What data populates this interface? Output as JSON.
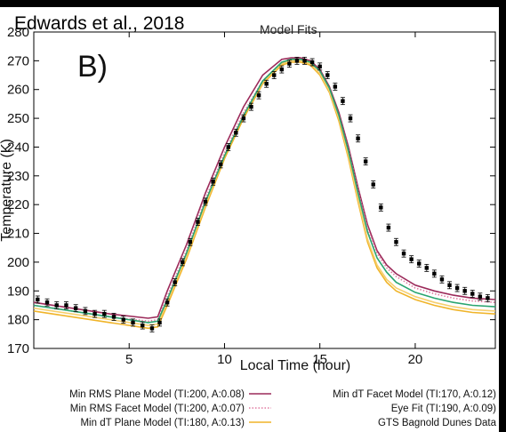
{
  "citation": "Edwards et al., 2018",
  "panel_label": "B)",
  "chart_data": {
    "type": "line",
    "title": "Model Fits",
    "xlabel": "Local Time (hour)",
    "ylabel": "Temperature (K)",
    "xlim": [
      0,
      24.2
    ],
    "ylim": [
      170,
      280
    ],
    "xticks": [
      5,
      10,
      15,
      20
    ],
    "yticks": [
      170,
      180,
      190,
      200,
      210,
      220,
      230,
      240,
      250,
      260,
      270,
      280
    ],
    "grid": false,
    "legend_position": "bottom",
    "series": [
      {
        "name": "Min RMS Plane Model (TI:200, A:0.08)",
        "color": "#9c2a5a",
        "style": "solid",
        "x": [
          0,
          2,
          4,
          6,
          6.5,
          7,
          7.5,
          8,
          8.5,
          9,
          10,
          11,
          12,
          13,
          13.5,
          14,
          14.5,
          15,
          15.5,
          16,
          16.5,
          17,
          17.5,
          18,
          18.5,
          19,
          20,
          21,
          22,
          23,
          24.2
        ],
        "y": [
          186,
          184,
          182,
          180.5,
          181,
          190,
          198,
          206,
          215,
          224,
          240,
          254,
          265,
          270.5,
          271,
          271,
          270,
          267,
          261,
          252,
          240,
          226,
          213,
          204,
          199,
          196,
          192,
          190,
          188.5,
          187.5,
          187
        ]
      },
      {
        "name": "Min RMS Facet Model (TI:200, A:0.07)",
        "color": "#e07aa0",
        "style": "dotted",
        "x": [
          0,
          2,
          4,
          6,
          6.5,
          7,
          7.5,
          8,
          8.5,
          9,
          10,
          11,
          12,
          13,
          13.5,
          14,
          14.5,
          15,
          15.5,
          16,
          16.5,
          17,
          17.5,
          18,
          18.5,
          19,
          20,
          21,
          22,
          23,
          24.2
        ],
        "y": [
          185,
          183,
          181,
          179.5,
          180,
          188,
          196,
          204,
          213,
          222,
          238,
          252,
          263,
          269.5,
          270,
          270,
          269,
          266,
          260,
          251,
          239,
          225,
          212,
          203,
          198,
          195,
          191,
          189,
          187.5,
          186.5,
          186
        ]
      },
      {
        "name": "Min dT Plane Model (TI:180, A:0.13)",
        "color": "#f0b429",
        "style": "solid",
        "x": [
          0,
          2,
          4,
          6,
          6.5,
          7,
          7.5,
          8,
          8.5,
          9,
          10,
          11,
          12,
          13,
          13.5,
          14,
          14.5,
          15,
          15.5,
          16,
          16.5,
          17,
          17.5,
          18,
          18.5,
          19,
          20,
          21,
          22,
          23,
          24.2
        ],
        "y": [
          183,
          181,
          179,
          177,
          177.5,
          185,
          193,
          201,
          210,
          219,
          236,
          250,
          262,
          268.5,
          269.5,
          269.5,
          268.5,
          265,
          259,
          249,
          236,
          221,
          207,
          198,
          193,
          190,
          187,
          185,
          183.5,
          182.5,
          182
        ]
      },
      {
        "name": "Min dT Facet Model (TI:170, A:0.12)",
        "color": "#f6cf6e",
        "style": "solid",
        "x": [
          0,
          2,
          4,
          6,
          6.5,
          7,
          7.5,
          8,
          8.5,
          9,
          10,
          11,
          12,
          13,
          13.5,
          14,
          14.5,
          15,
          15.5,
          16,
          16.5,
          17,
          17.5,
          18,
          18.5,
          19,
          20,
          21,
          22,
          23,
          24.2
        ],
        "y": [
          184,
          182,
          180,
          178,
          178.5,
          186,
          194,
          202,
          211,
          220,
          237,
          251,
          262.5,
          269,
          270,
          270,
          269,
          265.5,
          259.5,
          250,
          237,
          222,
          208,
          199,
          194,
          191,
          188,
          186,
          184.5,
          183.5,
          183
        ]
      },
      {
        "name": "Eye Fit (TI:190, A:0.09)",
        "color": "#2aa56f",
        "style": "solid",
        "x": [
          0,
          2,
          4,
          6,
          6.5,
          7,
          7.5,
          8,
          8.5,
          9,
          10,
          11,
          12,
          13,
          13.5,
          14,
          14.5,
          15,
          15.5,
          16,
          16.5,
          17,
          17.5,
          18,
          18.5,
          19,
          20,
          21,
          22,
          23,
          24.2
        ],
        "y": [
          185,
          183,
          181,
          179,
          179.5,
          187,
          195,
          203,
          212,
          221,
          237,
          251,
          263,
          269.5,
          270.5,
          270.5,
          269.5,
          266.5,
          260.5,
          251,
          238.5,
          224,
          210.5,
          201.5,
          196.5,
          193,
          189.5,
          187.5,
          186,
          185,
          184.5
        ]
      },
      {
        "name": "GTS Bagnold Dunes Data",
        "color": "#000000",
        "style": "points",
        "x": [
          0.2,
          0.7,
          1.2,
          1.7,
          2.2,
          2.7,
          3.2,
          3.7,
          4.2,
          4.7,
          5.2,
          5.7,
          6.2,
          6.6,
          7.0,
          7.4,
          7.8,
          8.2,
          8.6,
          9.0,
          9.4,
          9.8,
          10.2,
          10.6,
          11.0,
          11.4,
          11.8,
          12.2,
          12.6,
          13.0,
          13.4,
          13.8,
          14.2,
          14.6,
          15.0,
          15.4,
          15.8,
          16.2,
          16.6,
          17.0,
          17.4,
          17.8,
          18.2,
          18.6,
          19.0,
          19.4,
          19.8,
          20.2,
          20.6,
          21.0,
          21.4,
          21.8,
          22.2,
          22.6,
          23.0,
          23.4,
          23.8
        ],
        "y": [
          187,
          186,
          185,
          185,
          184,
          183,
          182,
          182,
          181,
          180,
          179,
          178,
          177,
          179,
          186,
          193,
          200,
          207,
          214,
          221,
          228,
          234,
          240,
          245,
          250,
          254,
          258,
          262,
          265,
          267,
          269,
          270,
          270,
          269.5,
          268,
          265,
          261,
          256,
          250,
          243,
          235,
          227,
          219,
          212,
          207,
          203,
          201,
          199.5,
          198,
          196,
          194,
          192,
          191,
          190,
          189,
          188,
          187.5
        ]
      }
    ]
  }
}
